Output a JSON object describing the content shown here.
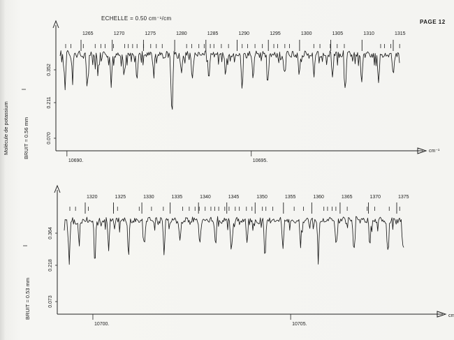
{
  "page": {
    "number_label": "PAGE 12"
  },
  "header": {
    "scale_label": "ECHELLE = 0.50 cm⁻¹/cm"
  },
  "side_title": "Molécule de potassium",
  "chart_data": [
    {
      "type": "line",
      "axis_unit": "cm⁻¹",
      "noise_label": "BRUIT = 0.56 mm",
      "intensity_symbol": "I",
      "y_ticks": [
        "0.352",
        "0.211",
        "0.070"
      ],
      "x_ticks": [
        {
          "value": 10690,
          "label": "10690."
        },
        {
          "value": 10695,
          "label": "10695."
        }
      ],
      "x_range": [
        10689.7,
        10699.4
      ],
      "line_numbers": [
        "1265",
        "1270",
        "1275",
        "1280",
        "1285",
        "1290",
        "1295",
        "1300",
        "1305",
        "1310",
        "1315"
      ],
      "lines": [
        {
          "x": 10689.95,
          "depth": 0.55
        },
        {
          "x": 10690.15,
          "depth": 0.35
        },
        {
          "x": 10690.55,
          "depth": 0.6
        },
        {
          "x": 10690.85,
          "depth": 0.3
        },
        {
          "x": 10691.2,
          "depth": 0.55
        },
        {
          "x": 10691.55,
          "depth": 0.4
        },
        {
          "x": 10691.9,
          "depth": 0.45
        },
        {
          "x": 10692.35,
          "depth": 0.3
        },
        {
          "x": 10692.85,
          "depth": 1.15
        },
        {
          "x": 10693.1,
          "depth": 0.35
        },
        {
          "x": 10693.4,
          "depth": 0.5
        },
        {
          "x": 10693.85,
          "depth": 0.45
        },
        {
          "x": 10694.3,
          "depth": 0.35
        },
        {
          "x": 10694.75,
          "depth": 0.55
        },
        {
          "x": 10695.05,
          "depth": 0.4
        },
        {
          "x": 10695.45,
          "depth": 0.45
        },
        {
          "x": 10695.9,
          "depth": 0.35
        },
        {
          "x": 10696.3,
          "depth": 0.45
        },
        {
          "x": 10696.7,
          "depth": 0.35
        },
        {
          "x": 10697.2,
          "depth": 0.4
        },
        {
          "x": 10697.55,
          "depth": 0.6
        },
        {
          "x": 10698.0,
          "depth": 0.45
        },
        {
          "x": 10698.45,
          "depth": 0.5
        },
        {
          "x": 10698.85,
          "depth": 0.4
        },
        {
          "x": 10699.05,
          "depth": 0.35
        }
      ]
    },
    {
      "type": "line",
      "axis_unit": "cm⁻¹",
      "noise_label": "BRUIT = 0.53 mm",
      "intensity_symbol": "I",
      "y_ticks": [
        "0.364",
        "0.218",
        "0.073"
      ],
      "x_ticks": [
        {
          "value": 10700,
          "label": "10700."
        },
        {
          "value": 10705,
          "label": "10705."
        }
      ],
      "x_range": [
        10699.1,
        10708.6
      ],
      "line_numbers": [
        "1320",
        "1325",
        "1330",
        "1335",
        "1340",
        "1345",
        "1350",
        "1355",
        "1360",
        "1365",
        "1370",
        "1375"
      ],
      "lines": [
        {
          "x": 10699.4,
          "depth": 0.7
        },
        {
          "x": 10699.65,
          "depth": 0.35
        },
        {
          "x": 10700.05,
          "depth": 0.55
        },
        {
          "x": 10700.4,
          "depth": 0.45
        },
        {
          "x": 10700.9,
          "depth": 0.5
        },
        {
          "x": 10701.3,
          "depth": 0.4
        },
        {
          "x": 10701.8,
          "depth": 0.55
        },
        {
          "x": 10702.2,
          "depth": 0.35
        },
        {
          "x": 10702.7,
          "depth": 0.45
        },
        {
          "x": 10703.1,
          "depth": 0.4
        },
        {
          "x": 10703.5,
          "depth": 0.55
        },
        {
          "x": 10703.9,
          "depth": 0.35
        },
        {
          "x": 10704.35,
          "depth": 0.65
        },
        {
          "x": 10704.8,
          "depth": 0.45
        },
        {
          "x": 10705.25,
          "depth": 0.4
        },
        {
          "x": 10705.7,
          "depth": 0.55
        },
        {
          "x": 10706.15,
          "depth": 0.45
        },
        {
          "x": 10706.6,
          "depth": 0.5
        },
        {
          "x": 10707.0,
          "depth": 0.4
        },
        {
          "x": 10707.45,
          "depth": 0.55
        },
        {
          "x": 10707.85,
          "depth": 0.45
        },
        {
          "x": 10708.25,
          "depth": 0.65
        }
      ]
    }
  ]
}
